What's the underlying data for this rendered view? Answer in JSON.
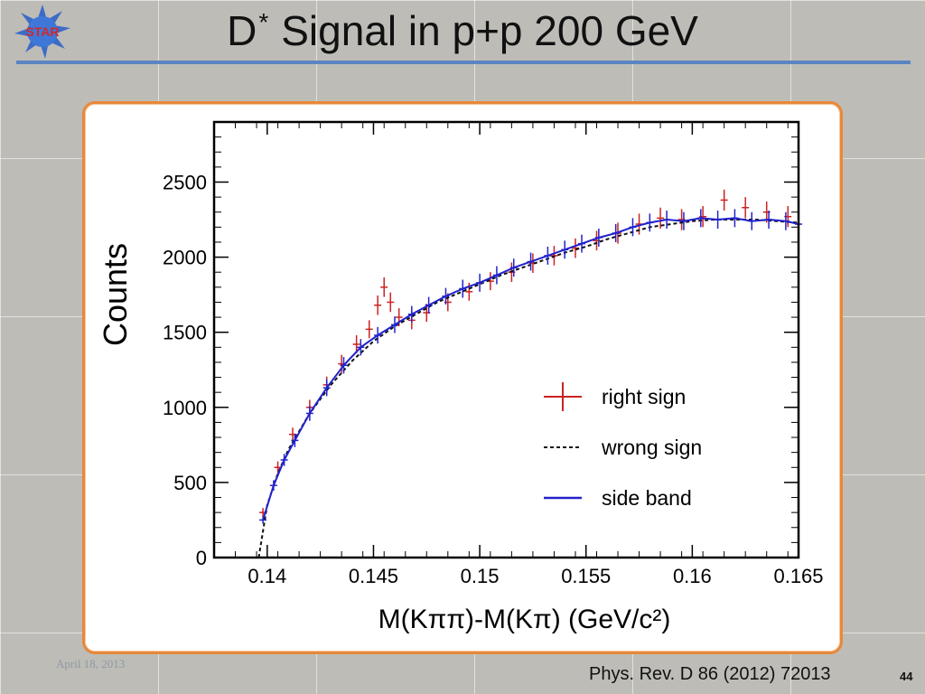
{
  "slide": {
    "title_main": "D",
    "title_sup": "*",
    "title_rest": "Signal in p+p 200 GeV",
    "logo_text": "STAR",
    "footer_date": "April 18, 2013",
    "footer_ref": "Phys. Rev. D 86 (2012) 72013",
    "page_number": "44",
    "colors": {
      "title_rule": "#5b85c2",
      "panel_border": "#e8883a",
      "logo_blue": "#2f63c8",
      "logo_red": "#d0282a"
    }
  },
  "chart_data": {
    "type": "scatter",
    "title": "",
    "xlabel": "M(Kππ)-M(Kπ) (GeV/c²)",
    "ylabel": "Counts",
    "xlim": [
      0.1375,
      0.165
    ],
    "ylim": [
      0,
      2900
    ],
    "xticks": [
      0.14,
      0.145,
      0.15,
      0.155,
      0.16,
      0.165
    ],
    "xtick_labels": [
      "0.14",
      "0.145",
      "0.15",
      "0.155",
      "0.16",
      "0.165"
    ],
    "yticks": [
      0,
      500,
      1000,
      1500,
      2000,
      2500
    ],
    "ytick_labels": [
      "0",
      "500",
      "1000",
      "1500",
      "2000",
      "2500"
    ],
    "grid": false,
    "legend_position": "lower-right",
    "series": [
      {
        "name": "right sign",
        "style": "error-bar",
        "color": "#cc2222",
        "x": [
          0.1398,
          0.1405,
          0.1412,
          0.142,
          0.1428,
          0.1435,
          0.1442,
          0.1448,
          0.1452,
          0.1455,
          0.1458,
          0.1462,
          0.1468,
          0.1475,
          0.1485,
          0.1495,
          0.1505,
          0.1515,
          0.1525,
          0.1535,
          0.1545,
          0.1555,
          0.1565,
          0.1575,
          0.1585,
          0.1595,
          0.1605,
          0.1615,
          0.1625,
          0.1635,
          0.1645
        ],
        "y": [
          300,
          600,
          820,
          1000,
          1150,
          1290,
          1420,
          1520,
          1680,
          1800,
          1700,
          1600,
          1580,
          1630,
          1700,
          1770,
          1840,
          1900,
          1960,
          2010,
          2060,
          2110,
          2160,
          2220,
          2260,
          2250,
          2270,
          2380,
          2330,
          2300,
          2270
        ],
        "yerr": [
          30,
          40,
          45,
          50,
          55,
          60,
          60,
          60,
          65,
          65,
          65,
          60,
          60,
          60,
          60,
          60,
          60,
          65,
          65,
          65,
          65,
          65,
          70,
          70,
          70,
          70,
          70,
          70,
          70,
          70,
          70
        ]
      },
      {
        "name": "wrong sign",
        "style": "dashed-line",
        "color": "#111111",
        "x": [
          0.1396,
          0.14,
          0.1405,
          0.141,
          0.142,
          0.143,
          0.144,
          0.145,
          0.146,
          0.147,
          0.148,
          0.149,
          0.15,
          0.151,
          0.152,
          0.153,
          0.154,
          0.155,
          0.156,
          0.157,
          0.158,
          0.159,
          0.16,
          0.161,
          0.162,
          0.163,
          0.164,
          0.165
        ],
        "y": [
          0,
          350,
          560,
          720,
          960,
          1150,
          1310,
          1440,
          1540,
          1620,
          1700,
          1760,
          1820,
          1880,
          1930,
          1980,
          2030,
          2070,
          2120,
          2160,
          2200,
          2220,
          2240,
          2250,
          2250,
          2250,
          2240,
          2230
        ]
      },
      {
        "name": "side band",
        "style": "solid-line-with-error-bars",
        "color": "#2222cc",
        "x": [
          0.1398,
          0.1403,
          0.1408,
          0.1413,
          0.142,
          0.1428,
          0.1436,
          0.1444,
          0.1452,
          0.146,
          0.1468,
          0.1476,
          0.1484,
          0.1492,
          0.15,
          0.1508,
          0.1516,
          0.1524,
          0.1532,
          0.154,
          0.1548,
          0.1556,
          0.1564,
          0.1572,
          0.158,
          0.1588,
          0.1596,
          0.1604,
          0.1612,
          0.162,
          0.1628,
          0.1636,
          0.1644,
          0.165
        ],
        "y": [
          250,
          480,
          650,
          780,
          960,
          1130,
          1280,
          1400,
          1480,
          1550,
          1620,
          1680,
          1740,
          1790,
          1830,
          1880,
          1930,
          1970,
          2010,
          2050,
          2090,
          2130,
          2160,
          2200,
          2230,
          2250,
          2240,
          2260,
          2250,
          2260,
          2240,
          2250,
          2240,
          2220
        ],
        "yerr": [
          25,
          35,
          40,
          45,
          50,
          55,
          55,
          55,
          55,
          55,
          55,
          55,
          55,
          60,
          60,
          60,
          60,
          60,
          60,
          60,
          60,
          60,
          60,
          60,
          60,
          60,
          60,
          60,
          60,
          60,
          60,
          60,
          60,
          60
        ]
      }
    ]
  }
}
